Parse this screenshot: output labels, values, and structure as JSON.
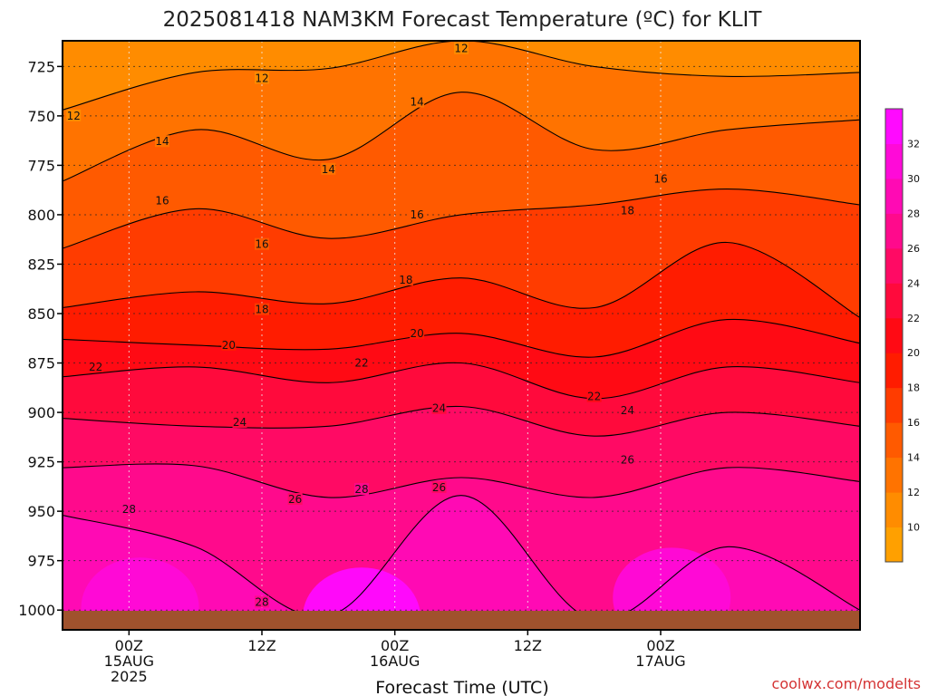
{
  "chart_data": {
    "type": "heatmap",
    "title": "2025081418 NAM3KM Forecast Temperature (ºC) for KLIT",
    "xlabel": "Forecast Time (UTC)",
    "ylabel": "",
    "credit": "coolwx.com/modelts",
    "y_axis": {
      "scale": "pressure (hPa), inverted",
      "ylim": [
        1010,
        712
      ],
      "ticks": [
        725,
        750,
        775,
        800,
        825,
        850,
        875,
        900,
        925,
        950,
        975,
        1000
      ],
      "tick_labels": [
        "725",
        "750",
        "775",
        "800",
        "825",
        "850",
        "875",
        "900",
        "925",
        "950",
        "975",
        "1000"
      ]
    },
    "x_axis": {
      "start": "2025-08-14 18Z",
      "end": "2025-08-17 18Z",
      "xlim": [
        "2025-08-14 18Z",
        "2025-08-17 18Z"
      ],
      "ticks": [
        "2025-08-15 00Z",
        "2025-08-15 12Z",
        "2025-08-16 00Z",
        "2025-08-16 12Z",
        "2025-08-17 00Z"
      ],
      "tick_labels": [
        [
          "00Z",
          "15AUG",
          "2025"
        ],
        [
          "12Z",
          "",
          ""
        ],
        [
          "00Z",
          "16AUG",
          ""
        ],
        [
          "12Z",
          "",
          ""
        ],
        [
          "00Z",
          "17AUG",
          ""
        ]
      ]
    },
    "grid": true,
    "colorbar": {
      "placement": "right",
      "levels": [
        8,
        10,
        12,
        14,
        16,
        18,
        20,
        22,
        24,
        26,
        28,
        30,
        32,
        34
      ],
      "tick_labels": [
        "10",
        "12",
        "14",
        "16",
        "18",
        "20",
        "22",
        "24",
        "26",
        "28",
        "30",
        "32"
      ],
      "colors": [
        "#ffa000",
        "#ff8c00",
        "#ff7300",
        "#ff5a00",
        "#ff3c00",
        "#ff1c00",
        "#ff0a14",
        "#ff0a3c",
        "#ff0a64",
        "#ff0a8c",
        "#ff0ab4",
        "#ff0ad8",
        "#ff0aff"
      ]
    },
    "ground_color": "#a0522d",
    "series": [
      {
        "name": "12",
        "x": [
          "2025-08-14 18Z",
          "2025-08-15 06Z",
          "2025-08-15 18Z",
          "2025-08-16 06Z",
          "2025-08-16 18Z",
          "2025-08-17 06Z",
          "2025-08-17 18Z"
        ],
        "y": [
          747,
          728,
          726,
          712,
          725,
          730,
          728
        ]
      },
      {
        "name": "14",
        "x": [
          "2025-08-14 18Z",
          "2025-08-15 06Z",
          "2025-08-15 18Z",
          "2025-08-16 06Z",
          "2025-08-16 18Z",
          "2025-08-17 06Z",
          "2025-08-17 18Z"
        ],
        "y": [
          783,
          757,
          772,
          738,
          767,
          757,
          752
        ]
      },
      {
        "name": "16",
        "x": [
          "2025-08-14 18Z",
          "2025-08-15 06Z",
          "2025-08-15 18Z",
          "2025-08-16 06Z",
          "2025-08-16 18Z",
          "2025-08-17 06Z",
          "2025-08-17 18Z"
        ],
        "y": [
          817,
          797,
          812,
          800,
          795,
          787,
          795
        ]
      },
      {
        "name": "18",
        "x": [
          "2025-08-14 18Z",
          "2025-08-15 06Z",
          "2025-08-15 18Z",
          "2025-08-16 06Z",
          "2025-08-16 18Z",
          "2025-08-17 06Z",
          "2025-08-17 18Z"
        ],
        "y": [
          847,
          839,
          845,
          832,
          847,
          814,
          852
        ]
      },
      {
        "name": "20",
        "x": [
          "2025-08-14 18Z",
          "2025-08-15 06Z",
          "2025-08-15 18Z",
          "2025-08-16 06Z",
          "2025-08-16 18Z",
          "2025-08-17 06Z",
          "2025-08-17 18Z"
        ],
        "y": [
          863,
          866,
          868,
          860,
          872,
          853,
          865
        ]
      },
      {
        "name": "22",
        "x": [
          "2025-08-14 18Z",
          "2025-08-15 06Z",
          "2025-08-15 18Z",
          "2025-08-16 06Z",
          "2025-08-16 18Z",
          "2025-08-17 06Z",
          "2025-08-17 18Z"
        ],
        "y": [
          882,
          877,
          885,
          875,
          893,
          877,
          885
        ]
      },
      {
        "name": "24",
        "x": [
          "2025-08-14 18Z",
          "2025-08-15 06Z",
          "2025-08-15 18Z",
          "2025-08-16 06Z",
          "2025-08-16 18Z",
          "2025-08-17 06Z",
          "2025-08-17 18Z"
        ],
        "y": [
          903,
          907,
          907,
          897,
          912,
          900,
          907
        ]
      },
      {
        "name": "26",
        "x": [
          "2025-08-14 18Z",
          "2025-08-15 06Z",
          "2025-08-15 18Z",
          "2025-08-16 06Z",
          "2025-08-16 18Z",
          "2025-08-17 06Z",
          "2025-08-17 18Z"
        ],
        "y": [
          928,
          927,
          943,
          933,
          943,
          928,
          935
        ]
      },
      {
        "name": "28",
        "x": [
          "2025-08-14 18Z",
          "2025-08-15 06Z",
          "2025-08-15 18Z",
          "2025-08-16 06Z",
          "2025-08-16 18Z",
          "2025-08-17 06Z",
          "2025-08-17 18Z"
        ],
        "y": [
          952,
          968,
          1003,
          942,
          1005,
          968,
          1000
        ]
      }
    ],
    "contour_labels": [
      {
        "text": "12",
        "x": "2025-08-16 06Z",
        "y": 716
      },
      {
        "text": "12",
        "x": "2025-08-15 12Z",
        "y": 731
      },
      {
        "text": "12",
        "x": "2025-08-14 19Z",
        "y": 750
      },
      {
        "text": "14",
        "x": "2025-08-16 02Z",
        "y": 743
      },
      {
        "text": "14",
        "x": "2025-08-15 03Z",
        "y": 763
      },
      {
        "text": "14",
        "x": "2025-08-15 18Z",
        "y": 777
      },
      {
        "text": "16",
        "x": "2025-08-15 03Z",
        "y": 793
      },
      {
        "text": "16",
        "x": "2025-08-15 12Z",
        "y": 815
      },
      {
        "text": "16",
        "x": "2025-08-16 02Z",
        "y": 800
      },
      {
        "text": "16",
        "x": "2025-08-17 00Z",
        "y": 782
      },
      {
        "text": "18",
        "x": "2025-08-16 01Z",
        "y": 833
      },
      {
        "text": "18",
        "x": "2025-08-15 12Z",
        "y": 848
      },
      {
        "text": "18",
        "x": "2025-08-16 21Z",
        "y": 798
      },
      {
        "text": "20",
        "x": "2025-08-15 09Z",
        "y": 866
      },
      {
        "text": "20",
        "x": "2025-08-16 02Z",
        "y": 860
      },
      {
        "text": "22",
        "x": "2025-08-14 21Z",
        "y": 877
      },
      {
        "text": "22",
        "x": "2025-08-15 21Z",
        "y": 875
      },
      {
        "text": "22",
        "x": "2025-08-16 18Z",
        "y": 892
      },
      {
        "text": "24",
        "x": "2025-08-15 10Z",
        "y": 905
      },
      {
        "text": "24",
        "x": "2025-08-16 04Z",
        "y": 898
      },
      {
        "text": "24",
        "x": "2025-08-16 21Z",
        "y": 899
      },
      {
        "text": "26",
        "x": "2025-08-15 15Z",
        "y": 944
      },
      {
        "text": "26",
        "x": "2025-08-16 04Z",
        "y": 938
      },
      {
        "text": "26",
        "x": "2025-08-16 21Z",
        "y": 924
      },
      {
        "text": "28",
        "x": "2025-08-15 00Z",
        "y": 949
      },
      {
        "text": "28",
        "x": "2025-08-15 21Z",
        "y": 939
      },
      {
        "text": "28",
        "x": "2025-08-15 12Z",
        "y": 996
      }
    ],
    "warm_cores": [
      {
        "x": "2025-08-15 21Z",
        "y": 1000,
        "value": 32
      },
      {
        "x": "2025-08-15 01Z",
        "y": 995,
        "value": 30
      },
      {
        "x": "2025-08-17 01Z",
        "y": 990,
        "value": 30
      }
    ]
  }
}
